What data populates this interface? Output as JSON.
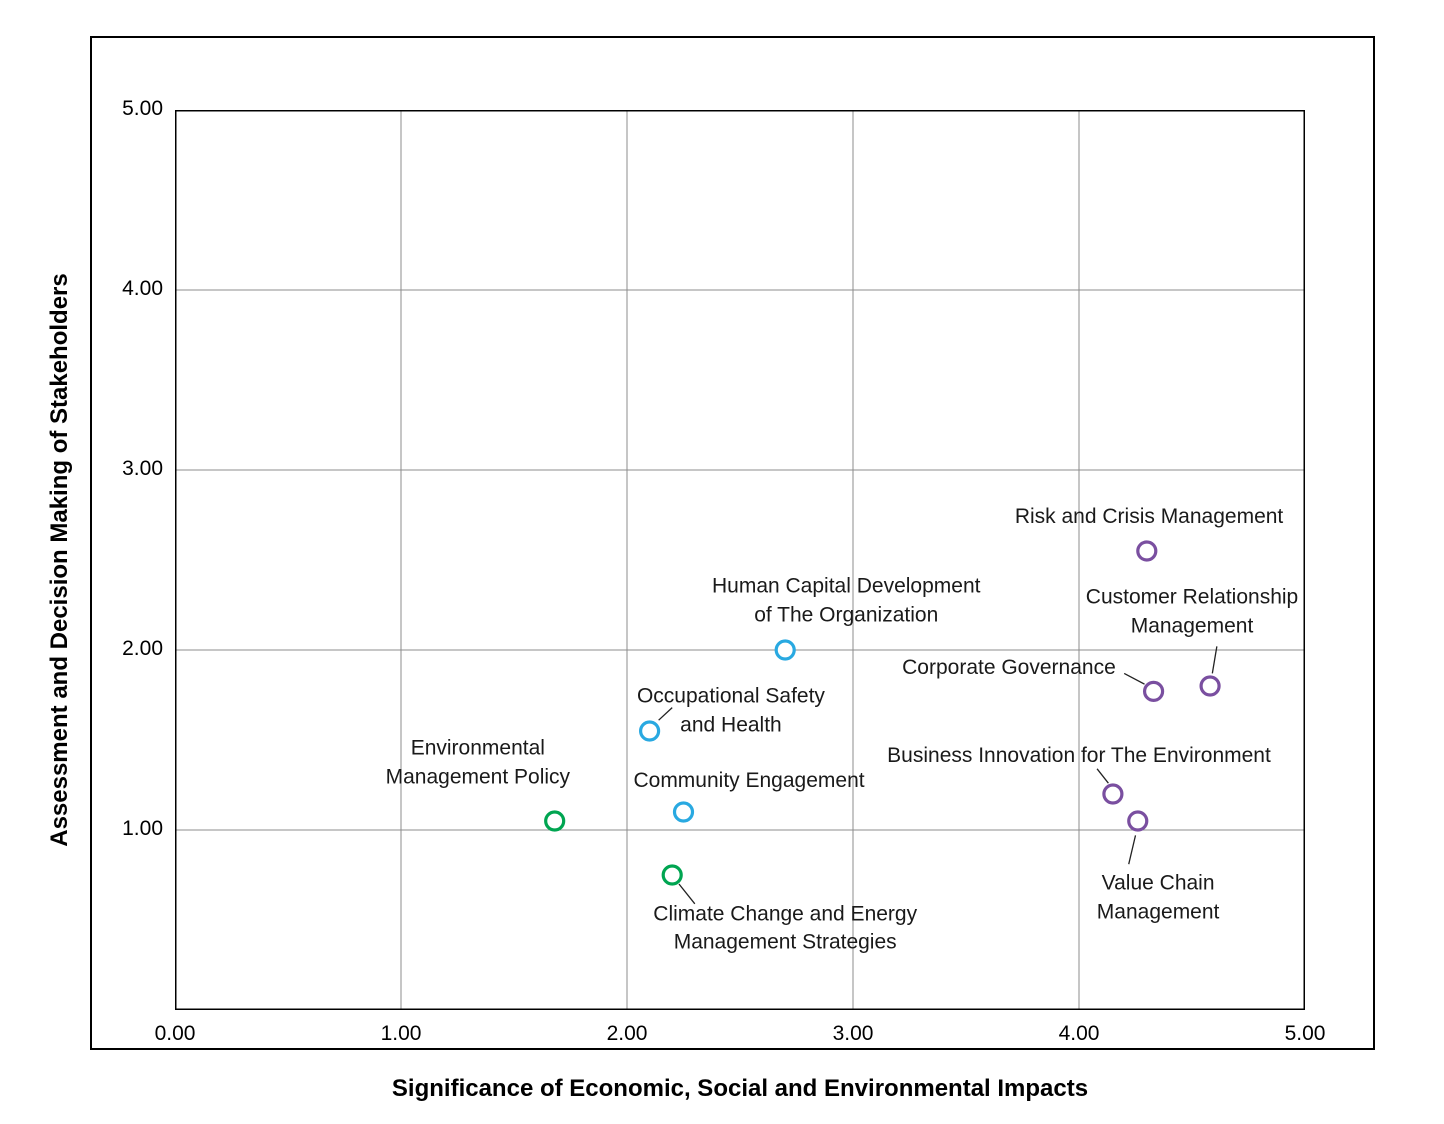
{
  "chart_data": {
    "type": "scatter",
    "title": "",
    "xlabel": "Significance of Economic, Social and Environmental Impacts",
    "ylabel": "Assessment and Decision Making of Stakeholders",
    "xlim": [
      0,
      5
    ],
    "ylim": [
      0,
      5
    ],
    "grid": true,
    "grid_color": "#8c8c8c",
    "axis_color": "#000000",
    "legend": "none",
    "xticks": [
      {
        "value": 0,
        "label": "0.00"
      },
      {
        "value": 1,
        "label": "1.00"
      },
      {
        "value": 2,
        "label": "2.00"
      },
      {
        "value": 3,
        "label": "3.00"
      },
      {
        "value": 4,
        "label": "4.00"
      },
      {
        "value": 5,
        "label": "5.00"
      }
    ],
    "yticks": [
      {
        "value": 1,
        "label": "1.00"
      },
      {
        "value": 2,
        "label": "2.00"
      },
      {
        "value": 3,
        "label": "3.00"
      },
      {
        "value": 4,
        "label": "4.00"
      },
      {
        "value": 5,
        "label": "5.00"
      }
    ],
    "point_colors": {
      "green": "#00a551",
      "blue": "#29a9e1",
      "purple": "#7a4fa0"
    },
    "points": [
      {
        "name": "Environmental Management Policy",
        "x": 1.68,
        "y": 1.05,
        "color": "#00a551",
        "label_lines": [
          "Environmental",
          "Management Policy"
        ],
        "label_at": {
          "x": 1.34,
          "y": 1.37
        },
        "leader": null
      },
      {
        "name": "Climate Change and Energy Management Strategies",
        "x": 2.2,
        "y": 0.75,
        "color": "#00a551",
        "label_lines": [
          "Climate Change and Energy",
          "Management Strategies"
        ],
        "label_at": {
          "x": 2.7,
          "y": 0.45
        },
        "leader": {
          "x1": 2.23,
          "y1": 0.7,
          "x2": 2.3,
          "y2": 0.59
        }
      },
      {
        "name": "Occupational Safety and Health",
        "x": 2.1,
        "y": 1.55,
        "color": "#29a9e1",
        "label_lines": [
          "Occupational Safety",
          "and Health"
        ],
        "label_at": {
          "x": 2.46,
          "y": 1.66
        },
        "leader": {
          "x1": 2.14,
          "y1": 1.61,
          "x2": 2.2,
          "y2": 1.68
        }
      },
      {
        "name": "Community Engagement",
        "x": 2.25,
        "y": 1.1,
        "color": "#29a9e1",
        "label_lines": [
          "Community Engagement"
        ],
        "label_at": {
          "x": 2.54,
          "y": 1.27
        },
        "leader": null
      },
      {
        "name": "Human Capital Development of The Organization",
        "x": 2.7,
        "y": 2.0,
        "color": "#29a9e1",
        "label_lines": [
          "Human Capital Development",
          "of The Organization"
        ],
        "label_at": {
          "x": 2.97,
          "y": 2.27
        },
        "leader": null
      },
      {
        "name": "Risk and Crisis Management",
        "x": 4.3,
        "y": 2.55,
        "color": "#7a4fa0",
        "label_lines": [
          "Risk and Crisis Management"
        ],
        "label_at": {
          "x": 4.31,
          "y": 2.74
        },
        "leader": null
      },
      {
        "name": "Customer Relationship Management",
        "x": 4.58,
        "y": 1.8,
        "color": "#7a4fa0",
        "label_lines": [
          "Customer Relationship",
          "Management"
        ],
        "label_at": {
          "x": 4.5,
          "y": 2.21
        },
        "leader": {
          "x1": 4.61,
          "y1": 2.02,
          "x2": 4.59,
          "y2": 1.87
        }
      },
      {
        "name": "Corporate Governance",
        "x": 4.33,
        "y": 1.77,
        "color": "#7a4fa0",
        "label_lines": [
          "Corporate Governance"
        ],
        "label_at": {
          "x": 3.69,
          "y": 1.9
        },
        "leader": {
          "x1": 4.2,
          "y1": 1.87,
          "x2": 4.29,
          "y2": 1.81
        }
      },
      {
        "name": "Business Innovation for The Environment",
        "x": 4.15,
        "y": 1.2,
        "color": "#7a4fa0",
        "label_lines": [
          "Business Innovation for The Environment"
        ],
        "label_at": {
          "x": 4.0,
          "y": 1.41
        },
        "leader": {
          "x1": 4.08,
          "y1": 1.34,
          "x2": 4.13,
          "y2": 1.26
        }
      },
      {
        "name": "Value Chain Management",
        "x": 4.26,
        "y": 1.05,
        "color": "#7a4fa0",
        "label_lines": [
          "Value Chain",
          "Management"
        ],
        "label_at": {
          "x": 4.35,
          "y": 0.62
        },
        "leader": {
          "x1": 4.22,
          "y1": 0.81,
          "x2": 4.25,
          "y2": 0.97
        }
      }
    ]
  }
}
